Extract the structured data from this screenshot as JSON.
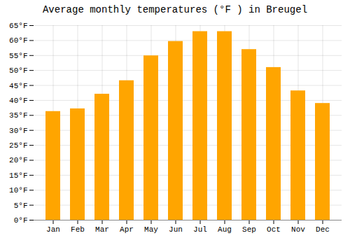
{
  "chart_data": {
    "type": "bar",
    "title": "Average monthly temperatures (°F ) in Breugel",
    "categories": [
      "Jan",
      "Feb",
      "Mar",
      "Apr",
      "May",
      "Jun",
      "Jul",
      "Aug",
      "Sep",
      "Oct",
      "Nov",
      "Dec"
    ],
    "values": [
      36.3,
      37.2,
      42.1,
      46.6,
      54.9,
      59.7,
      63.0,
      63.0,
      57.0,
      51.0,
      43.2,
      39.0
    ],
    "color": "#FFA500",
    "ylim": [
      0,
      65
    ],
    "yticks": [
      {
        "value": 0,
        "label": "0°F"
      },
      {
        "value": 5,
        "label": "5°F"
      },
      {
        "value": 10,
        "label": "10°F"
      },
      {
        "value": 15,
        "label": "15°F"
      },
      {
        "value": 20,
        "label": "20°F"
      },
      {
        "value": 25,
        "label": "25°F"
      },
      {
        "value": 30,
        "label": "30°F"
      },
      {
        "value": 35,
        "label": "35°F"
      },
      {
        "value": 40,
        "label": "40°F"
      },
      {
        "value": 45,
        "label": "45°F"
      },
      {
        "value": 50,
        "label": "50°F"
      },
      {
        "value": 55,
        "label": "55°F"
      },
      {
        "value": 60,
        "label": "60°F"
      },
      {
        "value": 65,
        "label": "65°F"
      }
    ],
    "grid": true
  }
}
